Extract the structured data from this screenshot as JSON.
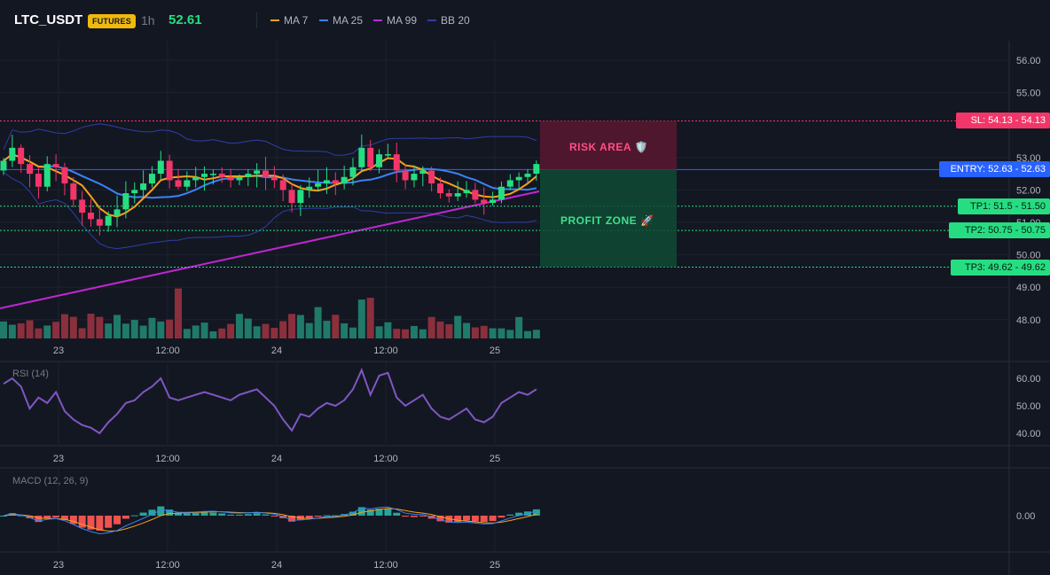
{
  "header": {
    "symbol": "LTC_USDT",
    "badge": "FUTURES",
    "timeframe": "1h",
    "price": "52.61",
    "indicators": [
      {
        "label": "MA 7",
        "color": "#f7a21b"
      },
      {
        "label": "MA 25",
        "color": "#3b82f6"
      },
      {
        "label": "MA 99",
        "color": "#c026d3"
      },
      {
        "label": "BB 20",
        "color": "#2f3fa8"
      }
    ]
  },
  "price_axis": {
    "ticks": [
      "56.00",
      "55.00",
      "53.00",
      "52.00",
      "51.00",
      "50.00",
      "49.00",
      "48.00"
    ]
  },
  "time_axis": {
    "labels": [
      "23",
      "12:00",
      "24",
      "12:00",
      "25"
    ]
  },
  "levels": {
    "sl": {
      "label": "SL: 54.13",
      "value": "54.13",
      "price": 54.13
    },
    "entry": {
      "label": "ENTRY: 52.63",
      "value": "52.63",
      "price": 52.63
    },
    "tp1": {
      "label": "TP1: 51.5",
      "value": "51.50",
      "price": 51.5
    },
    "tp2": {
      "label": "TP2: 50.75",
      "value": "50.75",
      "price": 50.75
    },
    "tp3": {
      "label": "TP3: 49.62",
      "value": "49.62",
      "price": 49.62
    }
  },
  "zones": {
    "risk": "RISK AREA 🛡️",
    "profit": "PROFIT ZONE 🚀"
  },
  "rsi": {
    "label": "RSI (14)",
    "ticks": [
      "60.00",
      "50.00",
      "40.00"
    ]
  },
  "macd": {
    "label": "MACD (12, 26, 9)",
    "ticks": [
      "0.00"
    ]
  },
  "colors": {
    "bull": "#26de81",
    "bear": "#f23669",
    "bull_vol": "#1f7a6a",
    "bear_vol": "#8c2f3d",
    "rsi": "#7e57c2",
    "macd_line": "#3b82f6",
    "signal_line": "#f7a21b"
  },
  "chart_data": {
    "type": "candlestick",
    "close": [
      52.9,
      53.3,
      52.8,
      52.5,
      52.1,
      52.8,
      52.7,
      52.2,
      51.7,
      51.3,
      51.1,
      50.9,
      51.2,
      51.4,
      51.9,
      52.0,
      52.2,
      52.5,
      52.9,
      52.3,
      52.1,
      52.3,
      52.4,
      52.5,
      52.5,
      52.4,
      52.3,
      52.4,
      52.5,
      52.6,
      52.4,
      52.3,
      52.0,
      51.6,
      52.0,
      52.1,
      52.2,
      52.3,
      52.2,
      52.4,
      52.7,
      53.3,
      52.7,
      53.1,
      53.1,
      52.6,
      52.3,
      52.5,
      52.6,
      52.2,
      51.9,
      51.8,
      51.9,
      52.0,
      51.7,
      51.6,
      51.7,
      52.1,
      52.3,
      52.4,
      52.5,
      52.8
    ],
    "volume_units": "relative"
  }
}
